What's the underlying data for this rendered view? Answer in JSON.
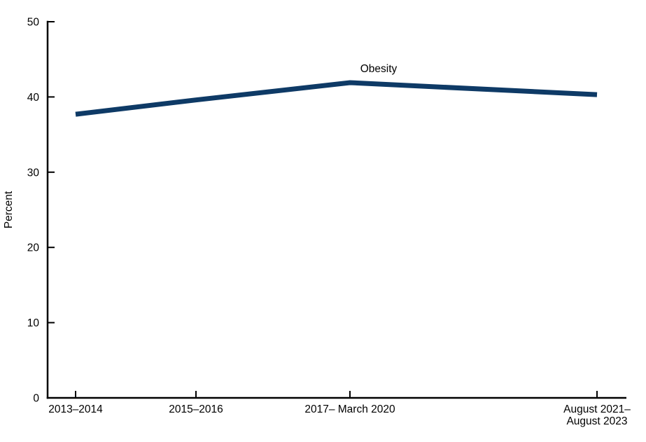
{
  "chart_data": {
    "type": "line",
    "title": "",
    "xlabel": "",
    "ylabel": "Percent",
    "categories": [
      "2013–2014",
      "2015–2016",
      "2017– March 2020",
      "August 2021–\nAugust 2023"
    ],
    "series": [
      {
        "name": "Obesity",
        "values": [
          37.7,
          39.6,
          41.9,
          40.3
        ]
      }
    ],
    "annotation": {
      "text": "Obesity"
    },
    "ylim": [
      0,
      50
    ],
    "yticks": [
      0,
      10,
      20,
      30,
      40,
      50
    ],
    "grid": false,
    "legend_position": "inline-label-above-line",
    "colors": {
      "line": "#0e3a66",
      "axis": "#000000",
      "text": "#000000",
      "background": "#ffffff"
    }
  }
}
